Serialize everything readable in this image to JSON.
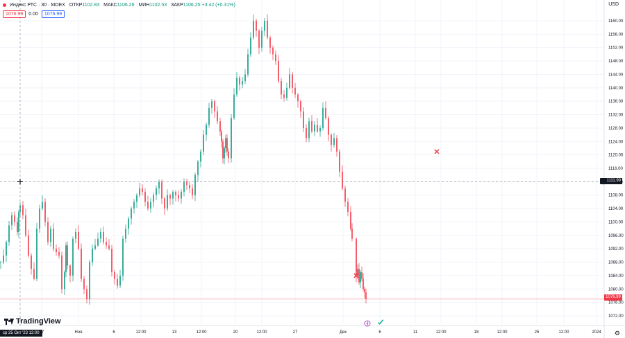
{
  "instrument": {
    "title": "Индекс РТС · 30 · MOEX",
    "open_label": "ОТКР",
    "open": "1102.83",
    "high_label": "МАКС",
    "high": "1106.26",
    "low_label": "МИН",
    "low": "1102.53",
    "close_label": "ЗАКР",
    "close": "1106.25",
    "change": "+3.42 (+0.31%)"
  },
  "order_boxes": {
    "sell": "1076.99",
    "spread": "0.00",
    "buy": "1076.99"
  },
  "currency": "USD",
  "crosshair_date": "ср 25 Окт '23   12:00",
  "crosshair_price": "1111.99",
  "last_price": "1076.99",
  "brand": "TradingView",
  "colors": {
    "up": "#089981",
    "down": "#f23645",
    "grid": "#f0f3fa"
  },
  "icons": [
    "chart-dot-icon",
    "crosshair-icon",
    "red-cross-marker-icon",
    "green-check-icon",
    "lightning-event-icon",
    "gear-icon"
  ],
  "chart_data": {
    "type": "candlestick",
    "y_ticks": [
      1160,
      1156,
      1152,
      1148,
      1144,
      1140,
      1136,
      1132,
      1128,
      1124,
      1120,
      1116,
      1112,
      1108,
      1104,
      1100,
      1096,
      1092,
      1088,
      1084,
      1080,
      1076,
      1072
    ],
    "ylim": [
      1069.5,
      1163.0
    ],
    "x_ticks": [
      {
        "label": "27",
        "pos": 0
      },
      {
        "label": "Ноя",
        "pos": 1
      },
      {
        "label": "6",
        "pos": 2
      },
      {
        "label": "12:00",
        "pos": 3
      },
      {
        "label": "13",
        "pos": 4
      },
      {
        "label": "12:00",
        "pos": 5
      },
      {
        "label": "20",
        "pos": 6
      },
      {
        "label": "12:00",
        "pos": 7
      },
      {
        "label": "27",
        "pos": 8
      },
      {
        "label": "Дек",
        "pos": 9
      },
      {
        "label": "6",
        "pos": 10
      },
      {
        "label": "11",
        "pos": 11
      },
      {
        "label": "12:00",
        "pos": 12
      },
      {
        "label": "18",
        "pos": 13
      },
      {
        "label": "12:00",
        "pos": 14
      },
      {
        "label": "25",
        "pos": 15
      },
      {
        "label": "12:00",
        "pos": 16
      },
      {
        "label": "2024",
        "pos": 17
      }
    ],
    "close_path": [
      [
        0,
        1088
      ],
      [
        2,
        1090
      ],
      [
        4,
        1094
      ],
      [
        6,
        1099
      ],
      [
        8,
        1102
      ],
      [
        10,
        1100
      ],
      [
        12,
        1097
      ],
      [
        13,
        1103
      ],
      [
        14,
        1105
      ],
      [
        16,
        1102
      ],
      [
        18,
        1096
      ],
      [
        20,
        1090
      ],
      [
        22,
        1086
      ],
      [
        24,
        1083
      ],
      [
        26,
        1098
      ],
      [
        28,
        1104
      ],
      [
        30,
        1106
      ],
      [
        32,
        1100
      ],
      [
        34,
        1094
      ],
      [
        36,
        1098
      ],
      [
        38,
        1092
      ],
      [
        40,
        1091
      ],
      [
        42,
        1090
      ],
      [
        44,
        1080
      ],
      [
        46,
        1085
      ],
      [
        47,
        1093
      ],
      [
        48,
        1087
      ],
      [
        50,
        1084
      ],
      [
        52,
        1095
      ],
      [
        54,
        1097
      ],
      [
        56,
        1092
      ],
      [
        58,
        1083
      ],
      [
        60,
        1080
      ],
      [
        62,
        1077
      ],
      [
        64,
        1088
      ],
      [
        66,
        1092
      ],
      [
        68,
        1093
      ],
      [
        70,
        1095
      ],
      [
        72,
        1097
      ],
      [
        74,
        1094
      ],
      [
        76,
        1093
      ],
      [
        78,
        1092
      ],
      [
        80,
        1085
      ],
      [
        82,
        1083
      ],
      [
        84,
        1081
      ],
      [
        86,
        1084
      ],
      [
        88,
        1095
      ],
      [
        90,
        1098
      ],
      [
        92,
        1101
      ],
      [
        94,
        1104
      ],
      [
        96,
        1106
      ],
      [
        98,
        1108
      ],
      [
        100,
        1110
      ],
      [
        102,
        1109
      ],
      [
        104,
        1106
      ],
      [
        106,
        1104
      ],
      [
        108,
        1106
      ],
      [
        110,
        1108
      ],
      [
        112,
        1110
      ],
      [
        114,
        1112
      ],
      [
        116,
        1107
      ],
      [
        118,
        1104
      ],
      [
        120,
        1108
      ],
      [
        122,
        1107
      ],
      [
        124,
        1109
      ],
      [
        126,
        1108
      ],
      [
        128,
        1107
      ],
      [
        130,
        1109
      ],
      [
        132,
        1112
      ],
      [
        134,
        1111
      ],
      [
        136,
        1110
      ],
      [
        138,
        1108
      ],
      [
        140,
        1114
      ],
      [
        142,
        1118
      ],
      [
        144,
        1121
      ],
      [
        146,
        1126
      ],
      [
        148,
        1129
      ],
      [
        150,
        1134
      ],
      [
        152,
        1136
      ],
      [
        154,
        1133
      ],
      [
        156,
        1130
      ],
      [
        158,
        1127
      ],
      [
        159,
        1124
      ],
      [
        160,
        1119
      ],
      [
        161,
        1122
      ],
      [
        162,
        1125
      ],
      [
        163,
        1121
      ],
      [
        164,
        1119
      ],
      [
        166,
        1131
      ],
      [
        168,
        1138
      ],
      [
        170,
        1143
      ],
      [
        172,
        1141
      ],
      [
        174,
        1142
      ],
      [
        176,
        1144
      ],
      [
        178,
        1150
      ],
      [
        180,
        1155
      ],
      [
        182,
        1160
      ],
      [
        184,
        1157
      ],
      [
        186,
        1152
      ],
      [
        188,
        1157
      ],
      [
        190,
        1160
      ],
      [
        192,
        1155
      ],
      [
        194,
        1152
      ],
      [
        196,
        1150
      ],
      [
        198,
        1148
      ],
      [
        200,
        1142
      ],
      [
        202,
        1138
      ],
      [
        204,
        1137
      ],
      [
        206,
        1140
      ],
      [
        208,
        1144
      ],
      [
        210,
        1140
      ],
      [
        212,
        1138
      ],
      [
        214,
        1136
      ],
      [
        216,
        1133
      ],
      [
        218,
        1128
      ],
      [
        220,
        1125
      ],
      [
        222,
        1130
      ],
      [
        224,
        1127
      ],
      [
        226,
        1129
      ],
      [
        228,
        1127
      ],
      [
        230,
        1128
      ],
      [
        232,
        1134
      ],
      [
        234,
        1131
      ],
      [
        236,
        1126
      ],
      [
        238,
        1123
      ],
      [
        240,
        1125
      ],
      [
        242,
        1121
      ],
      [
        244,
        1115
      ],
      [
        246,
        1110
      ],
      [
        248,
        1106
      ],
      [
        250,
        1103
      ],
      [
        252,
        1098
      ],
      [
        253,
        1095
      ],
      [
        256,
        1084
      ],
      [
        257,
        1086
      ],
      [
        258,
        1082
      ],
      [
        259,
        1085
      ],
      [
        260,
        1083
      ],
      [
        261,
        1080
      ],
      [
        262,
        1079
      ],
      [
        263,
        1077
      ]
    ],
    "events": [
      {
        "type": "sell",
        "pos": 0.7,
        "price": 1121
      },
      {
        "type": "sell",
        "pos": 0.578,
        "price": 1084
      },
      {
        "type": "buy",
        "pos": 0.618,
        "price": 1070
      }
    ]
  }
}
